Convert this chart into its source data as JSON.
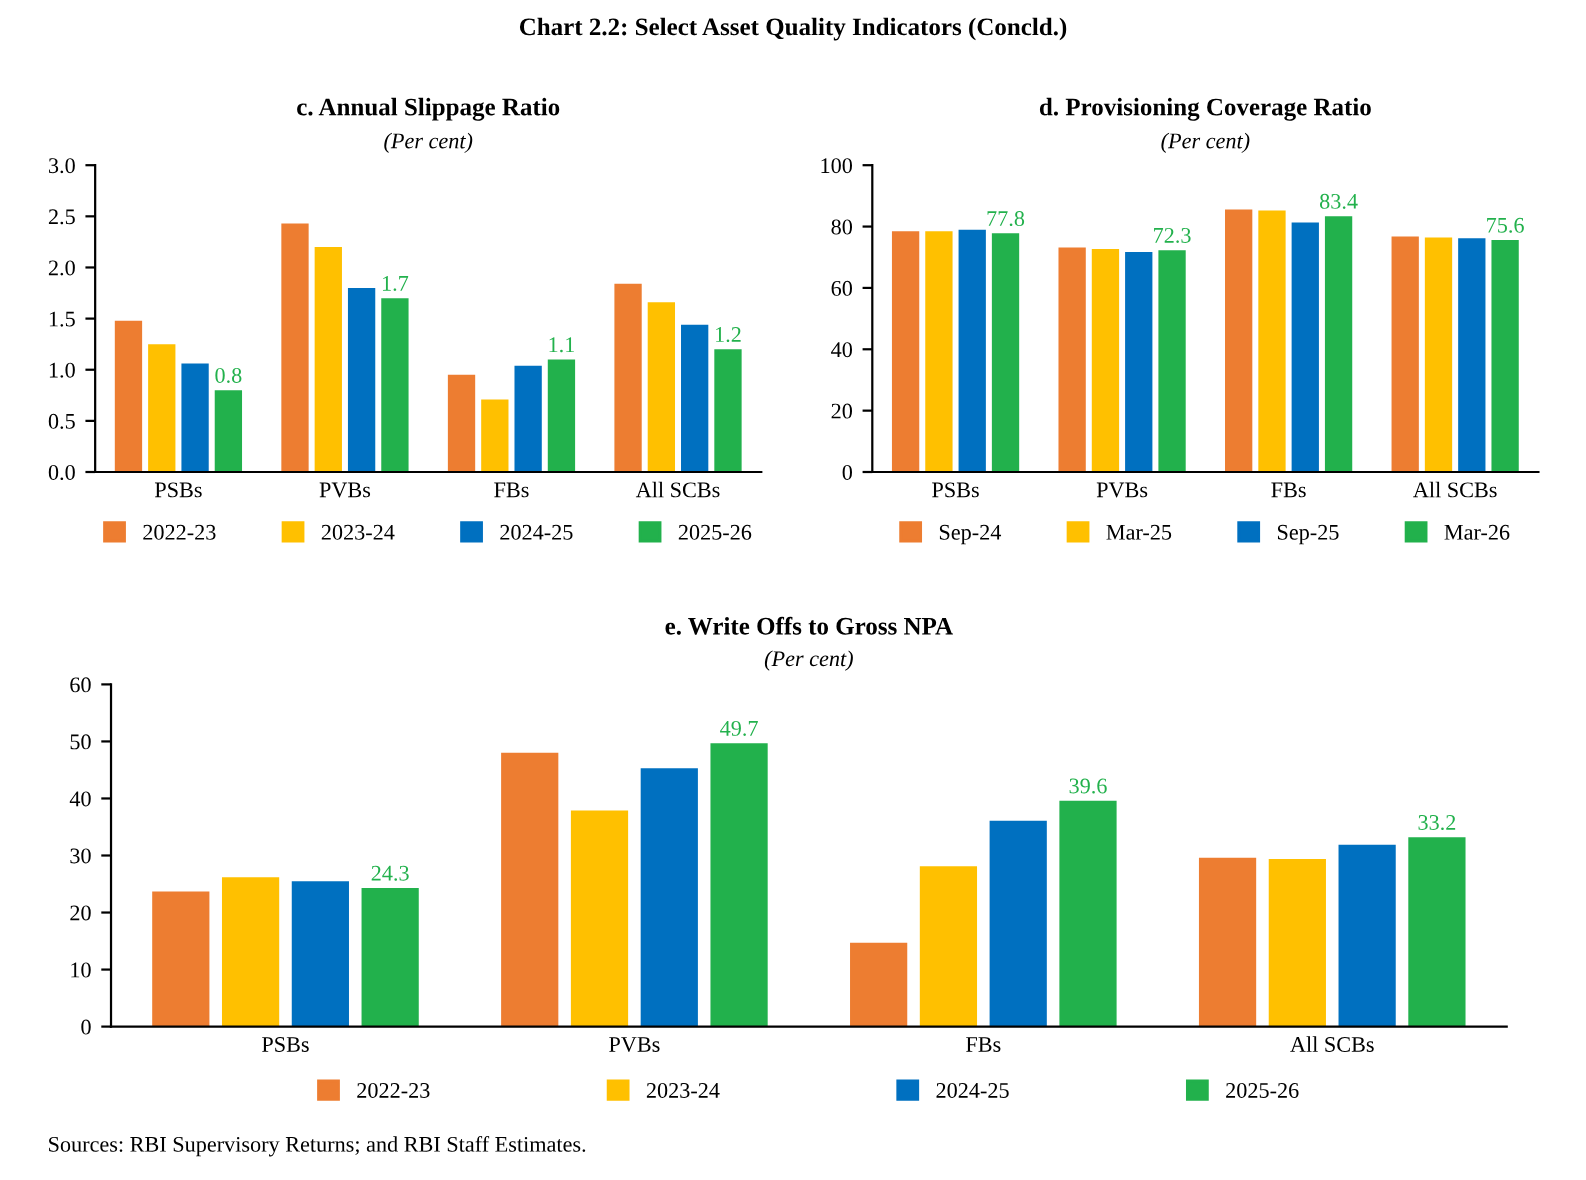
{
  "chart_data": [
    {
      "type": "bar",
      "title": "c. Annual Slippage Ratio",
      "subtitle": "(Per cent)",
      "annotations": [
        "Chart 2.2: Select Asset Quality Indicators (Concld.)"
      ],
      "categories": [
        "PSBs",
        "PVBs",
        "FBs",
        "All SCBs"
      ],
      "series": [
        {
          "name": "2022-23",
          "color": "#ed7d31",
          "values": [
            1.48,
            2.43,
            0.95,
            1.84
          ]
        },
        {
          "name": "2023-24",
          "color": "#ffc000",
          "values": [
            1.25,
            2.2,
            0.71,
            1.66
          ]
        },
        {
          "name": "2024-25",
          "color": "#0070c0",
          "values": [
            1.06,
            1.8,
            1.04,
            1.44
          ]
        },
        {
          "name": "2025-26",
          "color": "#22b14c",
          "values": [
            0.8,
            1.7,
            1.1,
            1.2
          ],
          "value_labels": [
            "0.8",
            "1.7",
            "1.1",
            "1.2"
          ]
        }
      ],
      "ylim": [
        0,
        3.0
      ],
      "yticks": [
        {
          "value": 0,
          "label": "0.0"
        },
        0.5,
        {
          "value": 1,
          "label": "1.0"
        },
        1.5,
        {
          "value": 2,
          "label": "2.0"
        },
        2.5,
        {
          "value": 3,
          "label": "3.0"
        }
      ],
      "legend": "bottom"
    },
    {
      "type": "bar",
      "title": "d. Provisioning Coverage Ratio",
      "subtitle": "(Per cent)",
      "categories": [
        "PSBs",
        "PVBs",
        "FBs",
        "All SCBs"
      ],
      "series": [
        {
          "name": "Sep-24",
          "color": "#ed7d31",
          "values": [
            78.5,
            73.2,
            85.6,
            76.8
          ]
        },
        {
          "name": "Mar-25",
          "color": "#ffc000",
          "values": [
            78.5,
            72.7,
            85.2,
            76.4
          ]
        },
        {
          "name": "Sep-25",
          "color": "#0070c0",
          "values": [
            79.0,
            71.7,
            81.3,
            76.2
          ]
        },
        {
          "name": "Mar-26",
          "color": "#22b14c",
          "values": [
            77.8,
            72.3,
            83.4,
            75.6
          ],
          "value_labels": [
            "77.8",
            "72.3",
            "83.4",
            "75.6"
          ]
        }
      ],
      "ylim": [
        0,
        100
      ],
      "yticks": [
        0,
        20,
        40,
        60,
        80,
        100
      ],
      "legend": "bottom"
    },
    {
      "type": "bar",
      "title": "e. Write Offs to Gross NPA",
      "subtitle": "(Per cent)",
      "annotations": [
        "Sources: RBI Supervisory Returns; and RBI Staff Estimates."
      ],
      "categories": [
        "PSBs",
        "PVBs",
        "FBs",
        "All SCBs"
      ],
      "series": [
        {
          "name": "2022-23",
          "color": "#ed7d31",
          "values": [
            23.7,
            48.0,
            14.7,
            29.6
          ]
        },
        {
          "name": "2023-24",
          "color": "#ffc000",
          "values": [
            26.2,
            37.9,
            28.1,
            29.4
          ]
        },
        {
          "name": "2024-25",
          "color": "#0070c0",
          "values": [
            25.5,
            45.3,
            36.1,
            31.9
          ]
        },
        {
          "name": "2025-26",
          "color": "#22b14c",
          "values": [
            24.3,
            49.7,
            39.6,
            33.2
          ],
          "value_labels": [
            "24.3",
            "49.7",
            "39.6",
            "33.2"
          ]
        }
      ],
      "ylim": [
        0,
        60
      ],
      "yticks": [
        0,
        10,
        20,
        30,
        40,
        50,
        60
      ],
      "legend": "bottom"
    }
  ]
}
